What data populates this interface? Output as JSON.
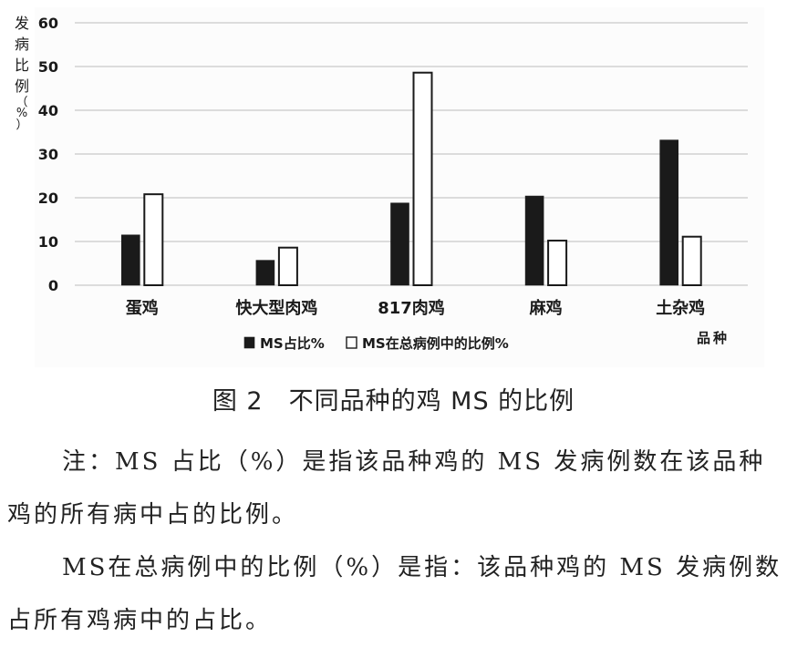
{
  "chart_data": {
    "type": "bar",
    "ylabel": "发病比例（%）",
    "xlabel": "品种",
    "ylim": [
      0,
      60
    ],
    "yticks": [
      0,
      10,
      20,
      30,
      40,
      50,
      60
    ],
    "categories": [
      "蛋鸡",
      "快大型肉鸡",
      "817肉鸡",
      "麻鸡",
      "土杂鸡"
    ],
    "series": [
      {
        "name": "MS占比%",
        "color": "#1a1a1a",
        "values": [
          11.5,
          5.7,
          18.8,
          20.4,
          33.2
        ]
      },
      {
        "name": "MS在总病例中的比例%",
        "color": "#ffffff",
        "values": [
          20.8,
          8.6,
          48.6,
          10.2,
          11.1
        ]
      }
    ],
    "grid": true,
    "legend": "bottom"
  },
  "caption": "图 2　不同品种的鸡 MS 的比例",
  "notes": {
    "note1": "注：MS 占比（%）是指该品种鸡的 MS 发病例数在该品种鸡的所有病中占的比例。",
    "note2": "MS在总病例中的比例（%）是指：该品种鸡的 MS 发病例数占所有鸡病中的占比。"
  }
}
